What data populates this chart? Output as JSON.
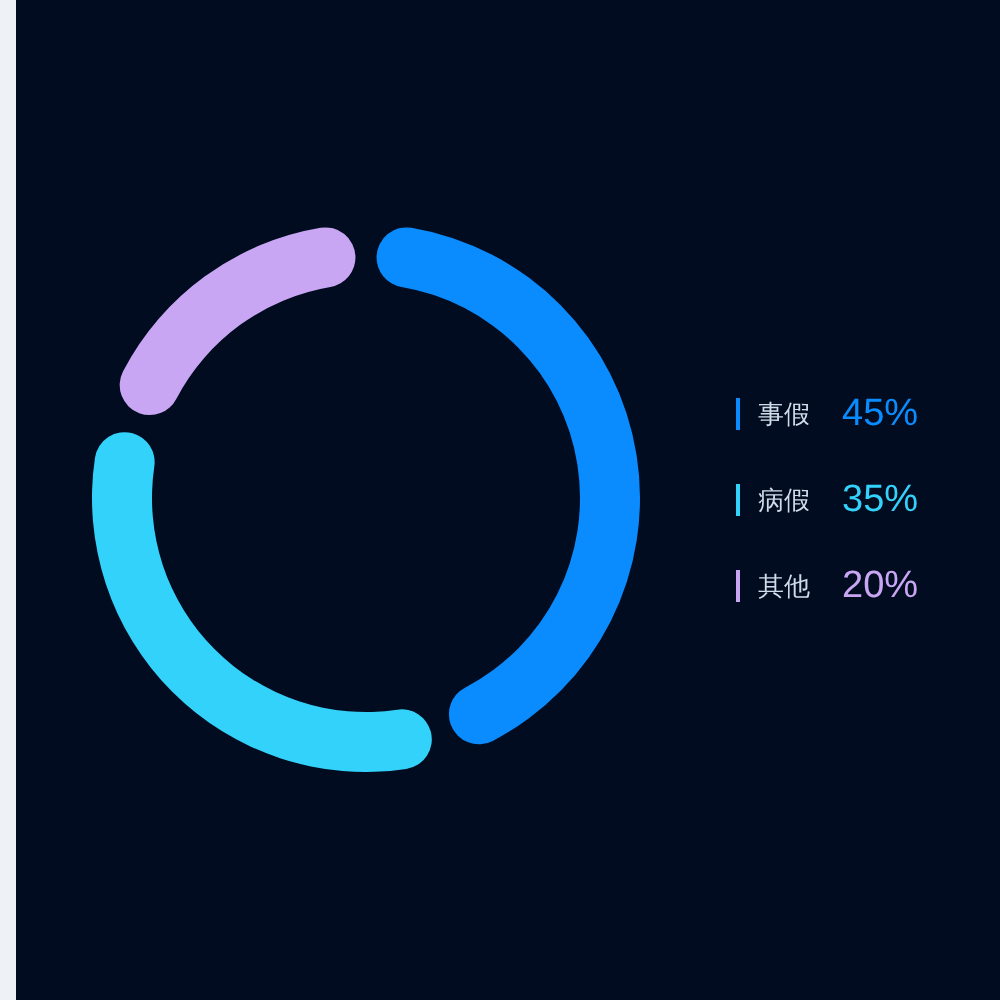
{
  "chart_data": {
    "type": "donut",
    "categories": [
      "事假",
      "病假",
      "其他"
    ],
    "values": [
      45,
      35,
      20
    ],
    "value_labels": [
      "45%",
      "35%",
      "20%"
    ],
    "colors": [
      "#0a8cff",
      "#33d2fa",
      "#c9a6f3"
    ],
    "legend": "right"
  }
}
